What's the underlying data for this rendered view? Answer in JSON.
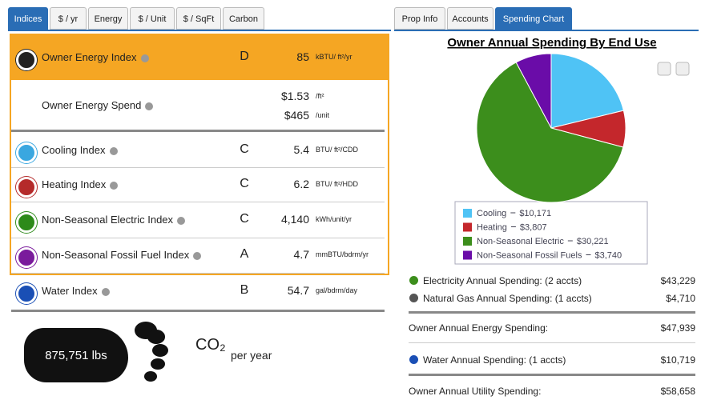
{
  "left": {
    "tabs": [
      "Indices",
      "$ / yr",
      "Energy",
      "$ / Unit",
      "$ / SqFt",
      "Carbon"
    ],
    "index_rows": [
      {
        "name": "Owner Energy Index",
        "grade": "D",
        "value": "85",
        "unit": "kBTU/ ft²/yr"
      },
      {
        "name": "Cooling Index",
        "grade": "C",
        "value": "5.4",
        "unit": "BTU/ ft²/CDD"
      },
      {
        "name": "Heating Index",
        "grade": "C",
        "value": "6.2",
        "unit": "BTU/ ft²/HDD"
      },
      {
        "name": "Non-Seasonal Electric Index",
        "grade": "C",
        "value": "4,140",
        "unit": "kWh/unit/yr"
      },
      {
        "name": "Non-Seasonal Fossil Fuel Index",
        "grade": "A",
        "value": "4.7",
        "unit": "mmBTU/bdrm/yr"
      },
      {
        "name": "Water Index",
        "grade": "B",
        "value": "54.7",
        "unit": "gal/bdrm/day"
      }
    ],
    "spend": {
      "name": "Owner Energy Spend",
      "amounts": [
        {
          "value": "$1.53",
          "unit": "/ft²"
        },
        {
          "value": "$465",
          "unit": "/unit"
        }
      ]
    },
    "carbon": {
      "amount": "875,751 lbs",
      "unit": "CO₂",
      "period": "per year"
    }
  },
  "right": {
    "tabs": [
      "Prop Info",
      "Accounts",
      "Spending Chart"
    ],
    "spending_rows": [
      {
        "label": "Electricity Annual Spending: (2 accts)",
        "value": "$43,229"
      },
      {
        "label": "Natural Gas Annual Spending: (1 accts)",
        "value": "$4,710"
      },
      {
        "label": "Owner Annual Energy Spending:",
        "value": "$47,939"
      },
      {
        "label": "Water Annual Spending: (1 accts)",
        "value": "$10,719"
      },
      {
        "label": "Owner Annual Utility Spending:",
        "value": "$58,658"
      }
    ]
  },
  "chart_data": {
    "type": "pie",
    "title": "Owner Annual Spending By End Use",
    "categories": [
      "Cooling",
      "Heating",
      "Non-Seasonal Electric",
      "Non-Seasonal Fossil Fuels"
    ],
    "values": [
      10171,
      3807,
      30221,
      3740
    ],
    "value_labels": [
      "$10,171",
      "$3,807",
      "$30,221",
      "$3,740"
    ],
    "colors": [
      "#4fc3f5",
      "#c4272c",
      "#3c8e1c",
      "#6a0ca8"
    ]
  }
}
